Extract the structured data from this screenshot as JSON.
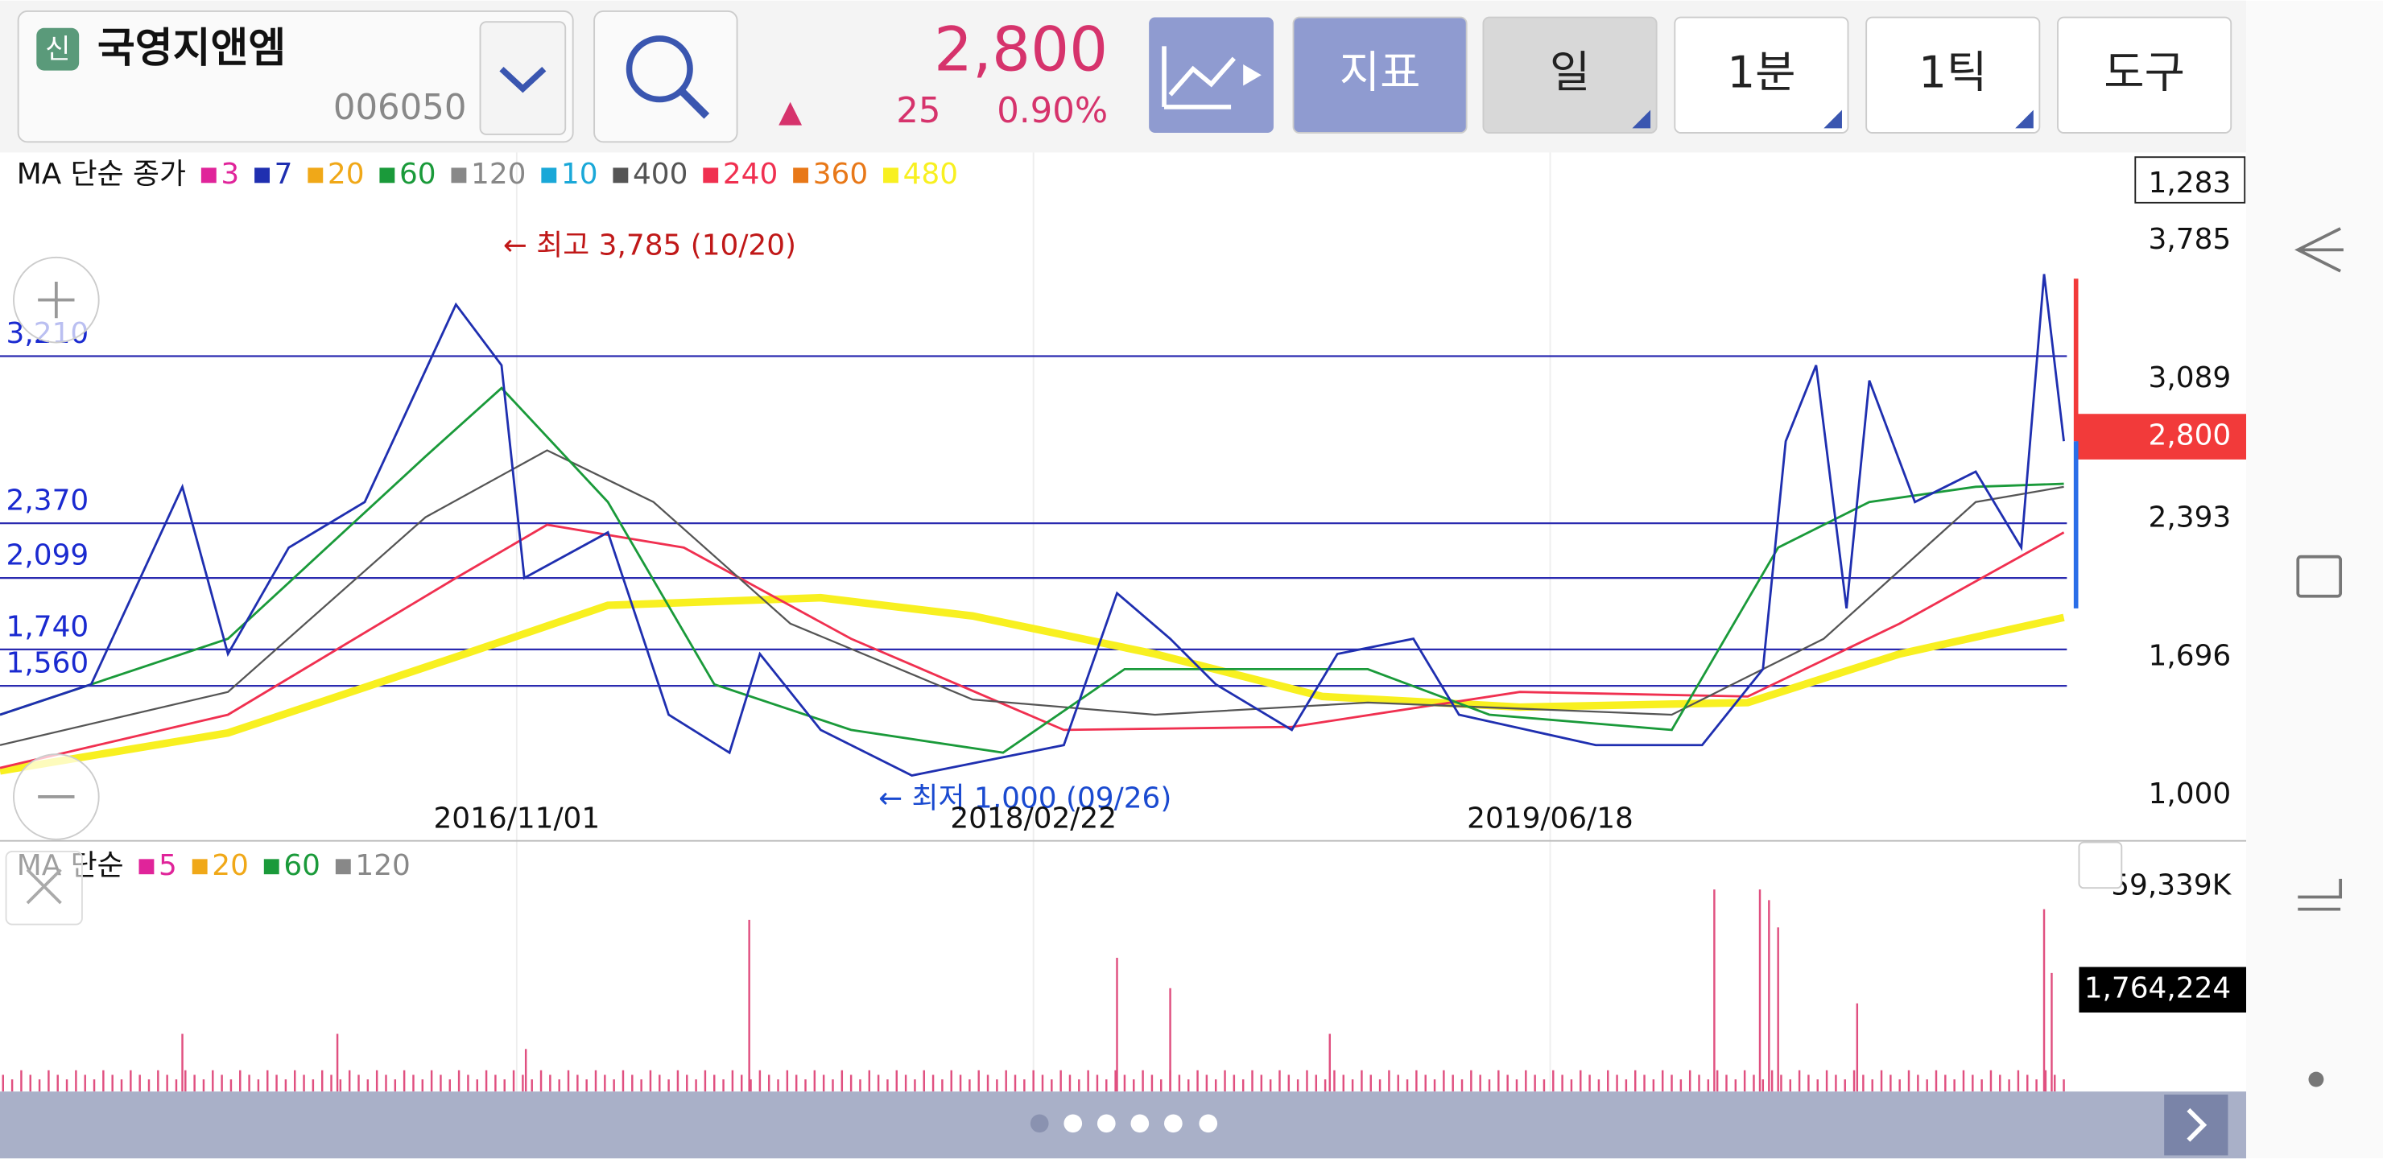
{
  "header": {
    "badge": "신",
    "name": "국영지앤엠",
    "code": "006050",
    "price": "2,800",
    "arrow": "▲",
    "change": "25",
    "percent": "0.90%",
    "buttons": [
      "지표",
      "일",
      "1분",
      "1틱",
      "도구"
    ]
  },
  "price_legend": {
    "label": "MA 단순 종가",
    "items": [
      {
        "label": "3",
        "color": "#e0249a"
      },
      {
        "label": "7",
        "color": "#1f2fb0"
      },
      {
        "label": "20",
        "color": "#f0a818"
      },
      {
        "label": "60",
        "color": "#1a9a3a"
      },
      {
        "label": "120",
        "color": "#888888"
      },
      {
        "label": "10",
        "color": "#1aa8d8"
      },
      {
        "label": "400",
        "color": "#555555"
      },
      {
        "label": "240",
        "color": "#f03050"
      },
      {
        "label": "360",
        "color": "#e87818"
      },
      {
        "label": "480",
        "color": "#f8f020"
      }
    ]
  },
  "price_axis": [
    "1,283",
    "3,785",
    "3,089",
    "2,800",
    "2,393",
    "1,696",
    "1,000"
  ],
  "levels": [
    "3,210",
    "2,370",
    "2,099",
    "1,740",
    "1,560"
  ],
  "annotations": {
    "high": "← 최고 3,785 (10/20)",
    "low": "← 최저 1,000 (09/26)"
  },
  "dates": [
    "2016/11/01",
    "2018/02/22",
    "2019/06/18"
  ],
  "volume_legend": {
    "label": "MA 단순",
    "items": [
      {
        "label": "5",
        "color": "#e0249a"
      },
      {
        "label": "20",
        "color": "#f0a818"
      },
      {
        "label": "60",
        "color": "#1a9a3a"
      },
      {
        "label": "120",
        "color": "#888888"
      }
    ]
  },
  "volume_axis": [
    "59,339K",
    "1,764,224"
  ]
}
